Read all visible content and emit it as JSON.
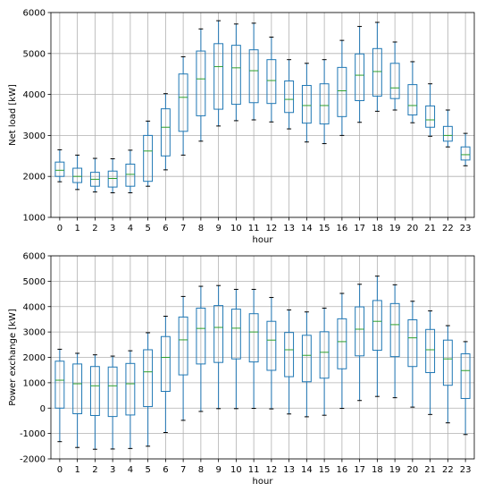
{
  "chart_data": [
    {
      "type": "boxplot",
      "xlabel": "hour",
      "ylabel": "Net load [kW]",
      "ylim": [
        1000,
        6000
      ],
      "yticks": [
        1000,
        2000,
        3000,
        4000,
        5000,
        6000
      ],
      "grid": true,
      "categories": [
        "0",
        "1",
        "2",
        "3",
        "4",
        "5",
        "6",
        "7",
        "8",
        "9",
        "10",
        "11",
        "12",
        "13",
        "14",
        "15",
        "16",
        "17",
        "18",
        "19",
        "20",
        "21",
        "22",
        "23"
      ],
      "colors": {
        "box": "#1f77b4",
        "median": "#2ca02c",
        "cap": "#000000"
      },
      "boxes": [
        {
          "whislo": 1870,
          "q1": 2000,
          "med": 2150,
          "q3": 2350,
          "whishi": 2650
        },
        {
          "whislo": 1680,
          "q1": 1850,
          "med": 2000,
          "q3": 2200,
          "whishi": 2520
        },
        {
          "whislo": 1620,
          "q1": 1760,
          "med": 1930,
          "q3": 2100,
          "whishi": 2440
        },
        {
          "whislo": 1600,
          "q1": 1740,
          "med": 1950,
          "q3": 2130,
          "whishi": 2430
        },
        {
          "whislo": 1600,
          "q1": 1760,
          "med": 2050,
          "q3": 2300,
          "whishi": 2640
        },
        {
          "whislo": 1760,
          "q1": 1880,
          "med": 2620,
          "q3": 3000,
          "whishi": 3350
        },
        {
          "whislo": 2160,
          "q1": 2500,
          "med": 3200,
          "q3": 3650,
          "whishi": 4020
        },
        {
          "whislo": 2520,
          "q1": 3100,
          "med": 3930,
          "q3": 4500,
          "whishi": 4920
        },
        {
          "whislo": 2860,
          "q1": 3480,
          "med": 4380,
          "q3": 5060,
          "whishi": 5600
        },
        {
          "whislo": 3230,
          "q1": 3640,
          "med": 4680,
          "q3": 5240,
          "whishi": 5800
        },
        {
          "whislo": 3360,
          "q1": 3760,
          "med": 4650,
          "q3": 5200,
          "whishi": 5720
        },
        {
          "whislo": 3380,
          "q1": 3800,
          "med": 4580,
          "q3": 5090,
          "whishi": 5740
        },
        {
          "whislo": 3330,
          "q1": 3780,
          "med": 4340,
          "q3": 4850,
          "whishi": 5400
        },
        {
          "whislo": 3160,
          "q1": 3560,
          "med": 3880,
          "q3": 4330,
          "whishi": 4850
        },
        {
          "whislo": 2840,
          "q1": 3300,
          "med": 3730,
          "q3": 4220,
          "whishi": 4760
        },
        {
          "whislo": 2800,
          "q1": 3280,
          "med": 3730,
          "q3": 4260,
          "whishi": 4850
        },
        {
          "whislo": 3000,
          "q1": 3460,
          "med": 4090,
          "q3": 4660,
          "whishi": 5320
        },
        {
          "whislo": 3320,
          "q1": 3850,
          "med": 4470,
          "q3": 4990,
          "whishi": 5660
        },
        {
          "whislo": 3590,
          "q1": 3960,
          "med": 4560,
          "q3": 5120,
          "whishi": 5760
        },
        {
          "whislo": 3620,
          "q1": 3900,
          "med": 4160,
          "q3": 4760,
          "whishi": 5280
        },
        {
          "whislo": 3310,
          "q1": 3500,
          "med": 3730,
          "q3": 4240,
          "whishi": 4800
        },
        {
          "whislo": 2980,
          "q1": 3200,
          "med": 3380,
          "q3": 3720,
          "whishi": 4260
        },
        {
          "whislo": 2720,
          "q1": 2860,
          "med": 3000,
          "q3": 3220,
          "whishi": 3620
        },
        {
          "whislo": 2260,
          "q1": 2400,
          "med": 2530,
          "q3": 2720,
          "whishi": 3050
        }
      ]
    },
    {
      "type": "boxplot",
      "xlabel": "hour",
      "ylabel": "Power exchange [kW]",
      "ylim": [
        -2000,
        6000
      ],
      "yticks": [
        -2000,
        -1000,
        0,
        1000,
        2000,
        3000,
        4000,
        5000,
        6000
      ],
      "grid": true,
      "categories": [
        "0",
        "1",
        "2",
        "3",
        "4",
        "5",
        "6",
        "7",
        "8",
        "9",
        "10",
        "11",
        "12",
        "13",
        "14",
        "15",
        "16",
        "17",
        "18",
        "19",
        "20",
        "21",
        "22",
        "23"
      ],
      "colors": {
        "box": "#1f77b4",
        "median": "#2ca02c",
        "cap": "#000000"
      },
      "boxes": [
        {
          "whislo": -1320,
          "q1": 0,
          "med": 1100,
          "q3": 1850,
          "whishi": 2320
        },
        {
          "whislo": -1550,
          "q1": -220,
          "med": 960,
          "q3": 1740,
          "whishi": 2160
        },
        {
          "whislo": -1620,
          "q1": -290,
          "med": 880,
          "q3": 1640,
          "whishi": 2100
        },
        {
          "whislo": -1610,
          "q1": -330,
          "med": 880,
          "q3": 1620,
          "whishi": 2050
        },
        {
          "whislo": -1590,
          "q1": -270,
          "med": 960,
          "q3": 1760,
          "whishi": 2260
        },
        {
          "whislo": -1500,
          "q1": 60,
          "med": 1430,
          "q3": 2300,
          "whishi": 2970
        },
        {
          "whislo": -960,
          "q1": 660,
          "med": 2000,
          "q3": 2820,
          "whishi": 3620
        },
        {
          "whislo": -480,
          "q1": 1310,
          "med": 2690,
          "q3": 3590,
          "whishi": 4400
        },
        {
          "whislo": -130,
          "q1": 1740,
          "med": 3140,
          "q3": 3940,
          "whishi": 4800
        },
        {
          "whislo": -20,
          "q1": 1800,
          "med": 3180,
          "q3": 4040,
          "whishi": 4830
        },
        {
          "whislo": -20,
          "q1": 1940,
          "med": 3150,
          "q3": 3900,
          "whishi": 4680
        },
        {
          "whislo": -10,
          "q1": 1820,
          "med": 3000,
          "q3": 3720,
          "whishi": 4680
        },
        {
          "whislo": -30,
          "q1": 1490,
          "med": 2680,
          "q3": 3420,
          "whishi": 4360
        },
        {
          "whislo": -230,
          "q1": 1240,
          "med": 2300,
          "q3": 2980,
          "whishi": 3870
        },
        {
          "whislo": -340,
          "q1": 1040,
          "med": 2080,
          "q3": 2870,
          "whishi": 3790
        },
        {
          "whislo": -280,
          "q1": 1180,
          "med": 2200,
          "q3": 3010,
          "whishi": 3940
        },
        {
          "whislo": -10,
          "q1": 1550,
          "med": 2620,
          "q3": 3520,
          "whishi": 4520
        },
        {
          "whislo": 300,
          "q1": 2060,
          "med": 3110,
          "q3": 3990,
          "whishi": 4880
        },
        {
          "whislo": 460,
          "q1": 2280,
          "med": 3420,
          "q3": 4240,
          "whishi": 5200
        },
        {
          "whislo": 410,
          "q1": 2030,
          "med": 3290,
          "q3": 4120,
          "whishi": 4860
        },
        {
          "whislo": 40,
          "q1": 1640,
          "med": 2770,
          "q3": 3480,
          "whishi": 4210
        },
        {
          "whislo": -250,
          "q1": 1400,
          "med": 2300,
          "q3": 3100,
          "whishi": 3830
        },
        {
          "whislo": -580,
          "q1": 900,
          "med": 1940,
          "q3": 2680,
          "whishi": 3250
        },
        {
          "whislo": -1040,
          "q1": 380,
          "med": 1480,
          "q3": 2140,
          "whishi": 2620
        }
      ]
    }
  ]
}
